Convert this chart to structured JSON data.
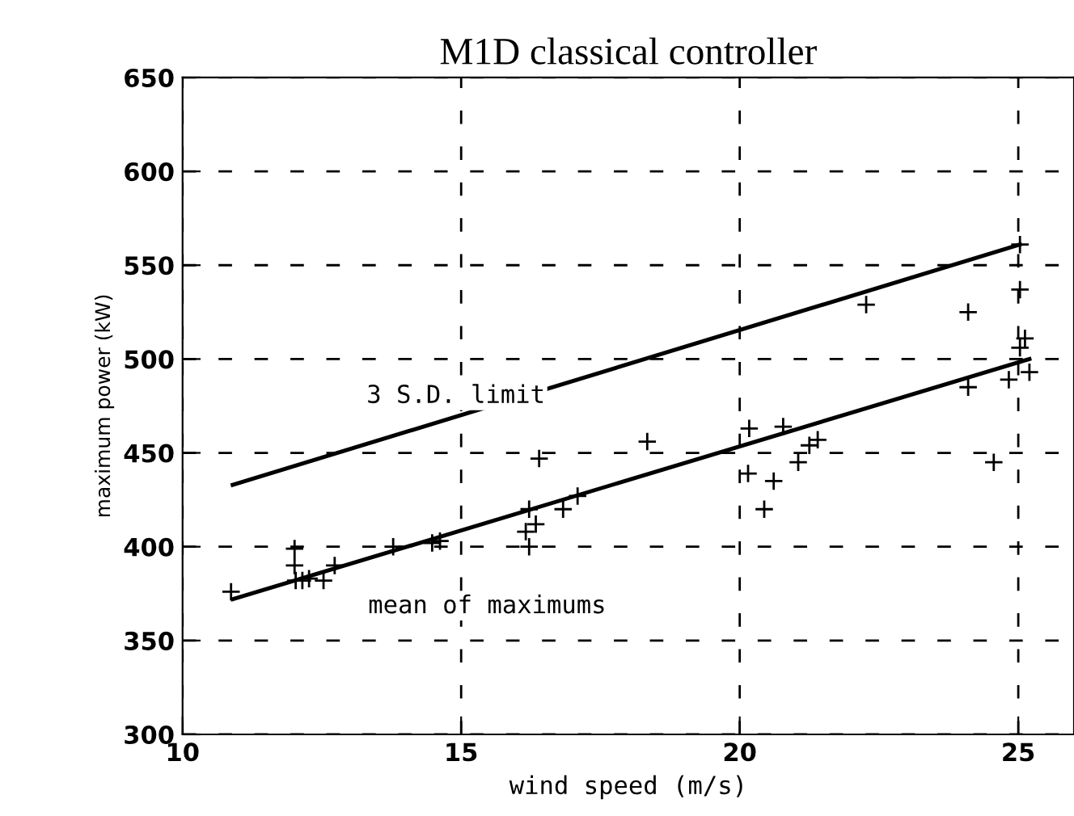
{
  "chart_data": {
    "type": "scatter",
    "title": "M1D classical controller",
    "xlabel": "wind speed (m/s)",
    "ylabel": "maximum power (kW)",
    "xlim": [
      10,
      26
    ],
    "ylim": [
      300,
      650
    ],
    "xticks": [
      10,
      15,
      20,
      25
    ],
    "yticks": [
      300,
      350,
      400,
      450,
      500,
      550,
      600,
      650
    ],
    "grid": true,
    "line_style": "dashed",
    "series": [
      {
        "marker": "cross",
        "color": "#000000",
        "x": [
          10.87,
          12.01,
          12.01,
          12.03,
          12.15,
          12.27,
          12.53,
          12.73,
          13.78,
          14.48,
          14.62,
          16.16,
          16.22,
          16.34,
          16.22,
          16.83,
          17.09,
          16.4,
          18.34,
          20.15,
          20.44,
          20.61,
          21.05,
          20.17,
          20.78,
          21.25,
          21.4,
          22.27,
          24.1,
          25.03,
          25.12,
          25.03,
          25.2,
          24.83,
          24.1,
          24.56,
          25.03
        ],
        "values": [
          376,
          399,
          390,
          382,
          382,
          383,
          382,
          390,
          400,
          402,
          403,
          408,
          400,
          412,
          420,
          420,
          427,
          447,
          456,
          439,
          420,
          435,
          445,
          463,
          464,
          454,
          457,
          529,
          525,
          537,
          511,
          506,
          493,
          489,
          485,
          445,
          561
        ]
      },
      {
        "type": "line",
        "name": "mean of maximums",
        "marker": "none",
        "line_style": "solid",
        "color": "#000000",
        "x": [
          10.9,
          25.2
        ],
        "values": [
          372,
          500
        ]
      },
      {
        "type": "line",
        "name": "3 S.D. limit",
        "marker": "none",
        "line_style": "solid",
        "color": "#000000",
        "x": [
          10.9,
          25.03
        ],
        "values": [
          433,
          561
        ]
      }
    ]
  }
}
